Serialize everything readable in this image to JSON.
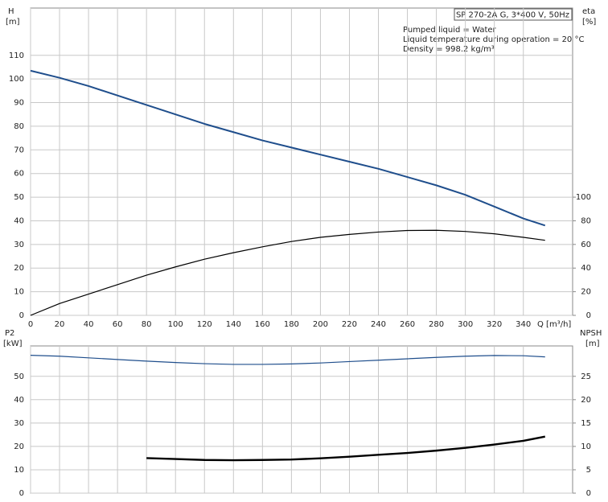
{
  "chart_data": [
    {
      "type": "line",
      "title": "SP 270-2A G, 3*400 V, 50Hz",
      "annotations": [
        "Pumped liquid = Water",
        "Liquid temperature during operation = 20 °C",
        "Density = 998.2 kg/m³"
      ],
      "y_label": "H",
      "y_unit": "[m]",
      "y2_label": "eta",
      "y2_unit": "[%]",
      "x_label": "Q [m³/h]",
      "x": [
        0,
        20,
        40,
        60,
        80,
        100,
        120,
        140,
        160,
        180,
        200,
        220,
        240,
        260,
        280,
        300,
        320,
        340,
        355
      ],
      "series": [
        {
          "color": "#1f4e8c",
          "values": [
            103.5,
            100.5,
            97,
            93,
            89,
            85,
            81,
            77.5,
            74,
            71,
            68,
            65,
            62,
            58.5,
            55,
            51,
            46,
            41,
            38
          ]
        },
        {
          "color": "#000000",
          "axis": "y2",
          "values": [
            0,
            10,
            18,
            26,
            34,
            41,
            47.5,
            53,
            58,
            62.5,
            66,
            68.5,
            70.5,
            71.8,
            72,
            71,
            69,
            66,
            63.5
          ]
        }
      ],
      "xlim": [
        0,
        374
      ],
      "xticks": [
        0,
        20,
        40,
        60,
        80,
        100,
        120,
        140,
        160,
        180,
        200,
        220,
        240,
        260,
        280,
        300,
        320,
        340
      ],
      "ylim": [
        0,
        130
      ],
      "yticks": [
        0,
        10,
        20,
        30,
        40,
        50,
        60,
        70,
        80,
        90,
        100,
        110
      ],
      "y2lim": [
        0,
        260
      ],
      "y2ticks": [
        0,
        20,
        40,
        60,
        80,
        100
      ],
      "grid": true
    },
    {
      "type": "line",
      "y_label": "P2",
      "y_unit": "[kW]",
      "y2_label": "NPSH",
      "y2_unit": "[m]",
      "x": [
        0,
        20,
        40,
        60,
        80,
        100,
        120,
        140,
        160,
        180,
        200,
        220,
        240,
        260,
        280,
        300,
        320,
        340,
        355
      ],
      "series": [
        {
          "color": "#1f4e8c",
          "values": [
            59,
            58.6,
            57.9,
            57.2,
            56.5,
            55.9,
            55.4,
            55.1,
            55.1,
            55.3,
            55.7,
            56.3,
            56.9,
            57.5,
            58.1,
            58.6,
            58.9,
            58.8,
            58.3
          ]
        },
        {
          "color": "#000000",
          "axis": "y2",
          "values": [
            null,
            null,
            null,
            null,
            7.5,
            7.3,
            7.1,
            7.05,
            7.1,
            7.2,
            7.45,
            7.8,
            8.2,
            8.6,
            9.1,
            9.7,
            10.4,
            11.2,
            12.1
          ]
        }
      ],
      "xlim": [
        0,
        374
      ],
      "ylim": [
        0,
        63
      ],
      "yticks": [
        0,
        10,
        20,
        30,
        40,
        50
      ],
      "y2lim": [
        0,
        31.5
      ],
      "y2ticks": [
        0,
        5,
        10,
        15,
        20,
        25
      ],
      "grid": true
    }
  ]
}
